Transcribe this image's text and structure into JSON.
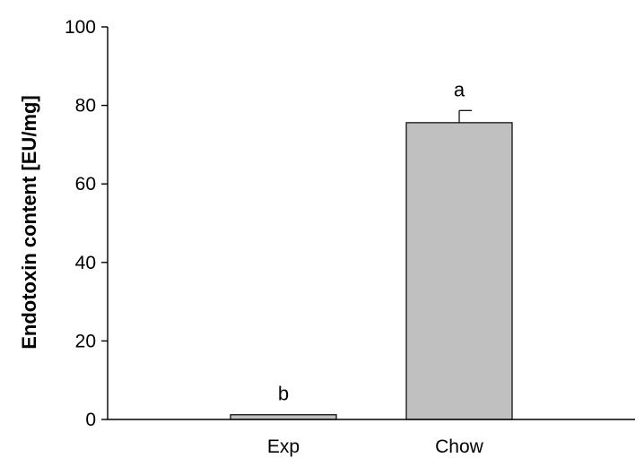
{
  "chart_data": {
    "type": "bar",
    "title": "",
    "xlabel": "",
    "ylabel": "Endotoxin content [EU/mg]",
    "ylim": [
      0,
      100
    ],
    "yticks": [
      0,
      20,
      40,
      60,
      80,
      100
    ],
    "categories": [
      "Exp",
      "Chow"
    ],
    "values": [
      1.2,
      75.6
    ],
    "errors": [
      0.0,
      3.1
    ],
    "annotations": [
      "b",
      "a"
    ],
    "bar_color": "#c0c0c0",
    "grid": false,
    "legend": "none"
  }
}
